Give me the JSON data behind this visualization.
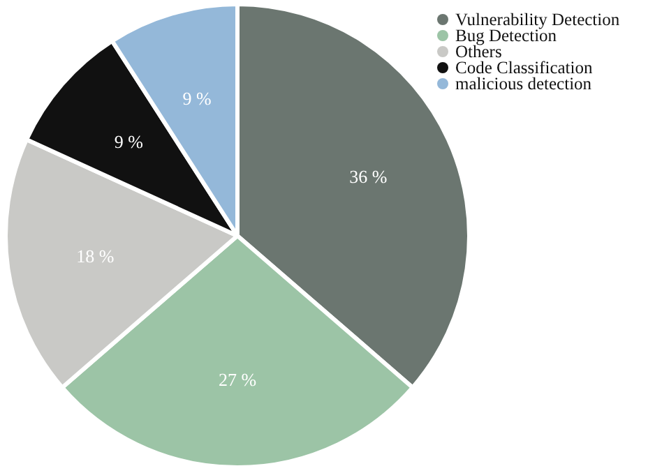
{
  "chart_data": {
    "type": "pie",
    "categories": [
      "Vulnerability Detection",
      "Bug Detection",
      "Others",
      "Code Classification",
      "malicious detection"
    ],
    "values": [
      36,
      27,
      18,
      9,
      9
    ],
    "colors": [
      "#6b7670",
      "#9cc4a6",
      "#c9c9c6",
      "#111111",
      "#94b8d9"
    ],
    "value_labels": [
      "36 %",
      "27 %",
      "18 %",
      "9 %",
      "9 %"
    ],
    "legend": "top right"
  }
}
